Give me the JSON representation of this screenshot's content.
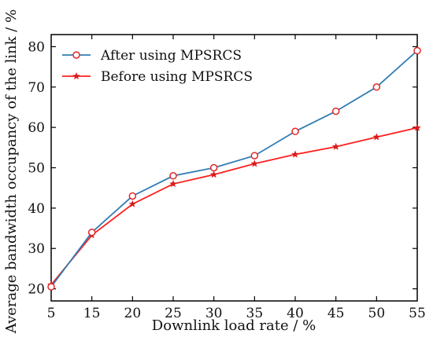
{
  "chart_data": {
    "type": "line",
    "title": "",
    "xlabel": "Downlink load rate / %",
    "ylabel": "Average bandwidth occupancy of the link / %",
    "x": [
      5,
      15,
      20,
      25,
      30,
      35,
      40,
      45,
      50,
      55
    ],
    "x_tick_labels": [
      "5",
      "15",
      "20",
      "25",
      "30",
      "35",
      "40",
      "45",
      "50",
      "55"
    ],
    "y_ticks": [
      20,
      30,
      40,
      50,
      60,
      70,
      80
    ],
    "ylim": [
      17,
      83
    ],
    "grid": false,
    "legend_position": "top-left",
    "series": [
      {
        "name": "After using MPSRCS",
        "values": [
          20.5,
          34,
          43,
          48,
          50,
          53,
          59,
          64,
          70,
          79
        ],
        "color": "#2f7cb3",
        "marker_color": "#e32626",
        "marker": "open-circle"
      },
      {
        "name": "Before using MPSRCS",
        "values": [
          21,
          33.3,
          41,
          46,
          48.3,
          51,
          53.3,
          55.2,
          57.6,
          59.9
        ],
        "color": "#ff1f1f",
        "marker_color": "#d81b1b",
        "marker": "star"
      }
    ]
  }
}
